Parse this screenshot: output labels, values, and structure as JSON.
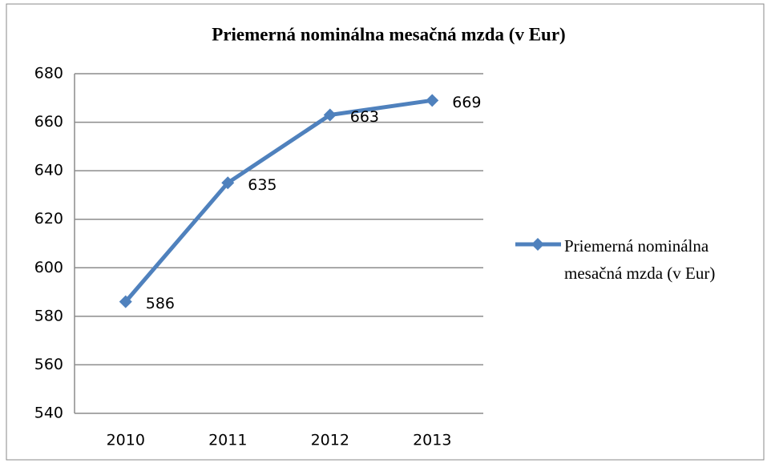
{
  "chart_data": {
    "type": "line",
    "title": "Priemerná nominálna mesačná mzda (v Eur)",
    "categories": [
      "2010",
      "2011",
      "2012",
      "2013"
    ],
    "series": [
      {
        "name": "Priemerná nominálna mesačná mzda (v Eur)",
        "color": "#4f81bd",
        "values": [
          586,
          635,
          663,
          669
        ]
      }
    ],
    "ylim": [
      540,
      680
    ],
    "yticks": [
      540,
      560,
      580,
      600,
      620,
      640,
      660,
      680
    ],
    "grid": true,
    "legend": "right",
    "data_labels": true
  }
}
